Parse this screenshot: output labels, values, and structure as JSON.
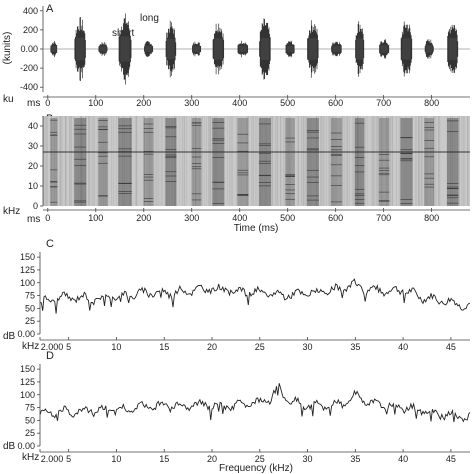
{
  "chart_data": [
    {
      "type": "line",
      "panel_label": "A",
      "ylabel": "(kunits)",
      "x_unit_label": "ms",
      "y_unit_label": "ku",
      "yticks": [
        "400",
        "200",
        "0.00",
        "-200",
        "-400"
      ],
      "ylim": [
        -450,
        450
      ],
      "xticks": [
        "0",
        "100",
        "200",
        "300",
        "400",
        "500",
        "600",
        "700",
        "800"
      ],
      "xlim": [
        -10,
        880
      ],
      "annotations": [
        "short",
        "long"
      ],
      "bursts": [
        {
          "start": 5,
          "end": 20,
          "amplitude": 90
        },
        {
          "start": 55,
          "end": 80,
          "amplitude": 340
        },
        {
          "start": 105,
          "end": 125,
          "amplitude": 80
        },
        {
          "start": 147,
          "end": 175,
          "amplitude": 380
        },
        {
          "start": 200,
          "end": 220,
          "amplitude": 90
        },
        {
          "start": 245,
          "end": 268,
          "amplitude": 300
        },
        {
          "start": 300,
          "end": 320,
          "amplitude": 90
        },
        {
          "start": 343,
          "end": 368,
          "amplitude": 320
        },
        {
          "start": 395,
          "end": 418,
          "amplitude": 95
        },
        {
          "start": 440,
          "end": 465,
          "amplitude": 330
        },
        {
          "start": 495,
          "end": 515,
          "amplitude": 95
        },
        {
          "start": 540,
          "end": 565,
          "amplitude": 320
        },
        {
          "start": 590,
          "end": 613,
          "amplitude": 100
        },
        {
          "start": 640,
          "end": 660,
          "amplitude": 320
        },
        {
          "start": 690,
          "end": 712,
          "amplitude": 110
        },
        {
          "start": 735,
          "end": 760,
          "amplitude": 320
        },
        {
          "start": 785,
          "end": 805,
          "amplitude": 110
        },
        {
          "start": 832,
          "end": 856,
          "amplitude": 330
        }
      ]
    },
    {
      "type": "heatmap",
      "panel_label": "B",
      "xlabel": "Time (ms)",
      "x_unit_label": "ms",
      "y_unit_label": "kHz",
      "yticks": [
        "40",
        "30",
        "20",
        "10",
        "0"
      ],
      "ylim": [
        0,
        45
      ],
      "xticks": [
        "0",
        "100",
        "200",
        "300",
        "400",
        "500",
        "600",
        "700",
        "800"
      ],
      "xlim": [
        -10,
        880
      ]
    },
    {
      "type": "line",
      "panel_label": "C",
      "y_unit_label": "dB",
      "x_unit_label": "kHz",
      "yticks": [
        "150",
        "125",
        "100",
        "75",
        "50",
        "25",
        "0.00"
      ],
      "ylim": [
        0,
        160
      ],
      "xticks": [
        "2.000",
        "5",
        "10",
        "15",
        "20",
        "25",
        "30",
        "35",
        "40",
        "45"
      ],
      "xlim": [
        2,
        47
      ],
      "x": [
        2,
        4,
        6,
        8,
        10,
        12,
        14,
        16,
        18,
        20,
        22,
        24,
        26,
        28,
        30,
        32,
        34,
        35,
        36,
        38,
        40,
        42,
        44,
        46,
        47
      ],
      "y": [
        62,
        70,
        72,
        68,
        74,
        78,
        82,
        80,
        86,
        88,
        85,
        82,
        78,
        76,
        80,
        82,
        90,
        96,
        88,
        84,
        86,
        72,
        66,
        58,
        54
      ]
    },
    {
      "type": "line",
      "panel_label": "D",
      "xlabel": "Frequency (kHz)",
      "y_unit_label": "dB",
      "x_unit_label": "kHz",
      "yticks": [
        "150",
        "125",
        "100",
        "75",
        "50",
        "25",
        "0.00"
      ],
      "ylim": [
        0,
        160
      ],
      "xticks": [
        "2.000",
        "5",
        "10",
        "15",
        "20",
        "25",
        "30",
        "35",
        "40",
        "45"
      ],
      "xlim": [
        2,
        47
      ],
      "x": [
        2,
        4,
        6,
        8,
        10,
        12,
        14,
        16,
        18,
        20,
        22,
        24,
        26,
        27,
        28,
        30,
        32,
        34,
        35,
        36,
        38,
        40,
        42,
        44,
        46,
        47
      ],
      "y": [
        62,
        66,
        68,
        70,
        70,
        74,
        78,
        78,
        80,
        80,
        78,
        80,
        90,
        112,
        88,
        78,
        80,
        84,
        100,
        86,
        80,
        74,
        70,
        62,
        56,
        54
      ]
    }
  ]
}
